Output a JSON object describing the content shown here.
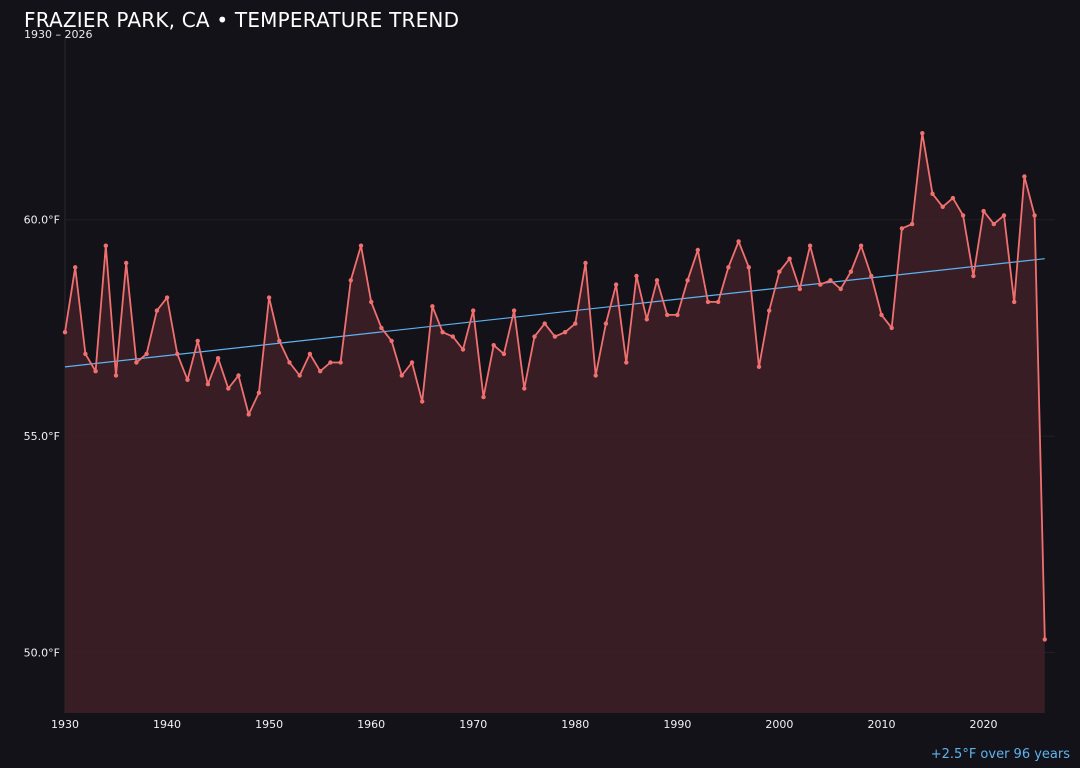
{
  "title": "FRAZIER PARK, CA • TEMPERATURE TREND",
  "subtitle": "1930 – 2026",
  "trend_note": "+2.5°F over 96 years",
  "colors": {
    "background": "#131218",
    "line": "#f07070",
    "area": "#3a1f26",
    "trend": "#5eb3f0",
    "grid": "#221f26"
  },
  "chart_data": {
    "type": "line",
    "x": [
      1930,
      1931,
      1932,
      1933,
      1934,
      1935,
      1936,
      1937,
      1938,
      1939,
      1940,
      1941,
      1942,
      1943,
      1944,
      1945,
      1946,
      1947,
      1948,
      1949,
      1950,
      1951,
      1952,
      1953,
      1954,
      1955,
      1956,
      1957,
      1958,
      1959,
      1960,
      1961,
      1962,
      1963,
      1964,
      1965,
      1966,
      1967,
      1968,
      1969,
      1970,
      1971,
      1972,
      1973,
      1974,
      1975,
      1976,
      1977,
      1978,
      1979,
      1980,
      1981,
      1982,
      1983,
      1984,
      1985,
      1986,
      1987,
      1988,
      1989,
      1990,
      1991,
      1992,
      1993,
      1994,
      1995,
      1996,
      1997,
      1998,
      1999,
      2000,
      2001,
      2002,
      2003,
      2004,
      2005,
      2006,
      2007,
      2008,
      2009,
      2010,
      2011,
      2012,
      2013,
      2014,
      2015,
      2016,
      2017,
      2018,
      2019,
      2020,
      2021,
      2022,
      2023,
      2024,
      2025,
      2026
    ],
    "series": [
      {
        "values": [
          57.4,
          58.9,
          56.9,
          56.5,
          59.4,
          56.4,
          59.0,
          56.7,
          56.9,
          57.9,
          58.2,
          56.9,
          56.3,
          57.2,
          56.2,
          56.8,
          56.1,
          56.4,
          55.5,
          56.0,
          58.2,
          57.2,
          56.7,
          56.4,
          56.9,
          56.5,
          56.7,
          56.7,
          58.6,
          59.4,
          58.1,
          57.5,
          57.2,
          56.4,
          56.7,
          55.8,
          58.0,
          57.4,
          57.3,
          57.0,
          57.9,
          55.9,
          57.1,
          56.9,
          57.9,
          56.1,
          57.3,
          57.6,
          57.3,
          57.4,
          57.6,
          59.0,
          56.4,
          57.6,
          58.5,
          56.7,
          58.7,
          57.7,
          58.6,
          57.8,
          57.8,
          58.6,
          59.3,
          58.1,
          58.1,
          58.9,
          59.5,
          58.9,
          56.6,
          57.9,
          58.8,
          59.1,
          58.4,
          59.4,
          58.5,
          58.6,
          58.4,
          58.8,
          59.4,
          58.7,
          57.8,
          57.5,
          59.8,
          59.9,
          62.0,
          60.6,
          60.3,
          60.5,
          60.1,
          58.7,
          60.2,
          59.9,
          60.1,
          58.1,
          61.0,
          60.1,
          50.3
        ]
      }
    ],
    "trend": {
      "start": [
        1930,
        56.6
      ],
      "end": [
        2026,
        59.1
      ]
    },
    "y_ticks": [
      50.0,
      55.0,
      60.0
    ],
    "y_tick_labels": [
      "50.0°F",
      "55.0°F",
      "60.0°F"
    ],
    "x_ticks": [
      1930,
      1940,
      1950,
      1960,
      1970,
      1980,
      1990,
      2000,
      2010,
      2020
    ],
    "x_tick_labels": [
      "1930",
      "1940",
      "1950",
      "1960",
      "1970",
      "1980",
      "1990",
      "2000",
      "2010",
      "2020"
    ],
    "xlim": [
      1930,
      2027
    ],
    "ylim": [
      48.6,
      64.2
    ],
    "grid": true,
    "legend": "none"
  }
}
